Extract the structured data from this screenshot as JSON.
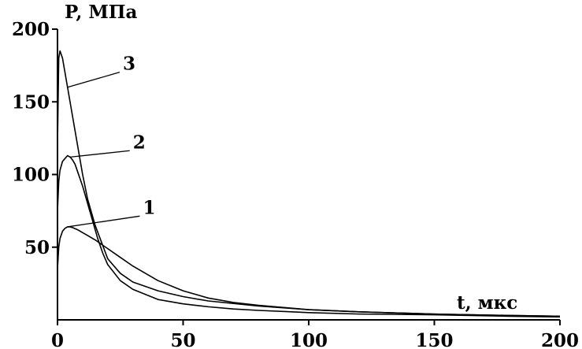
{
  "chart_data": {
    "type": "line",
    "xlabel": "t, мкс",
    "ylabel": "P, МПа",
    "xlim": [
      0,
      200
    ],
    "ylim": [
      0,
      200
    ],
    "x_ticks": [
      0,
      50,
      100,
      150,
      200
    ],
    "y_ticks": [
      50,
      100,
      150,
      200
    ],
    "x_tick_labels": [
      "0",
      "50",
      "100",
      "150",
      "200"
    ],
    "y_tick_labels": [
      "50",
      "100",
      "150",
      "200"
    ],
    "grid": false,
    "series": [
      {
        "name": "1",
        "x": [
          0,
          0.5,
          1,
          2,
          3,
          4,
          5,
          6,
          8,
          10,
          12,
          15,
          20,
          25,
          30,
          40,
          50,
          60,
          70,
          80,
          100,
          120,
          150,
          180,
          200
        ],
        "y": [
          35,
          50,
          56,
          61,
          63,
          64,
          64,
          63.5,
          62,
          60,
          58,
          55,
          49,
          43,
          37,
          27,
          20,
          15,
          12,
          10,
          7,
          5.5,
          4,
          3,
          2.5
        ]
      },
      {
        "name": "2",
        "x": [
          0,
          0.5,
          1,
          2,
          3,
          4,
          5,
          6,
          7,
          8,
          10,
          12,
          14,
          16,
          18,
          20,
          25,
          30,
          40,
          50,
          60,
          70,
          80,
          100,
          120,
          150,
          180,
          200
        ],
        "y": [
          75,
          95,
          103,
          109,
          111,
          113,
          112,
          110,
          107,
          102,
          92,
          80,
          68,
          56,
          46,
          38,
          27,
          21,
          14,
          11,
          9,
          7.5,
          6.5,
          5,
          4,
          3.5,
          2.5,
          2
        ]
      },
      {
        "name": "3",
        "x": [
          0,
          0.5,
          1,
          2,
          3,
          4,
          5,
          6,
          8,
          10,
          12,
          15,
          20,
          25,
          30,
          40,
          50,
          60,
          80,
          100,
          120,
          150,
          180,
          200
        ],
        "y": [
          120,
          180,
          185,
          180,
          170,
          160,
          150,
          140,
          120,
          100,
          83,
          65,
          42,
          32,
          26,
          20,
          16,
          13,
          9.5,
          7,
          5.5,
          4,
          3,
          2.5
        ]
      }
    ],
    "annotations": [
      {
        "text": "1",
        "x": 34,
        "y": 73,
        "target_x": 4,
        "target_y": 64
      },
      {
        "text": "2",
        "x": 30,
        "y": 118,
        "target_x": 5,
        "target_y": 112
      },
      {
        "text": "3",
        "x": 26,
        "y": 172,
        "target_x": 4,
        "target_y": 160
      }
    ]
  }
}
